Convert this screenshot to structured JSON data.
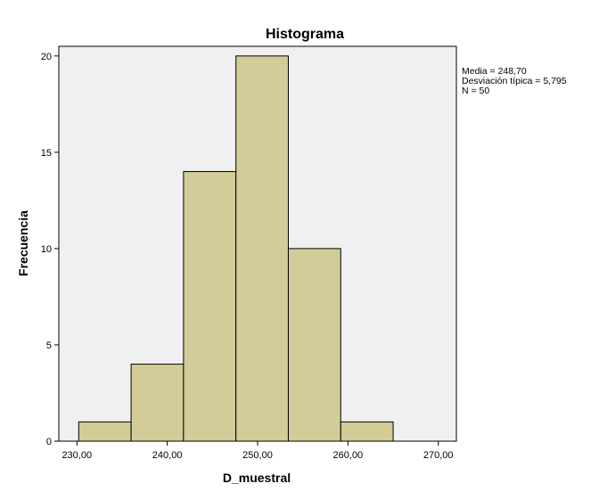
{
  "chart_data": {
    "type": "bar",
    "title": "Histograma",
    "xlabel": "D_muestral",
    "ylabel": "Frecuencia",
    "xlim": [
      228,
      272
    ],
    "ylim": [
      0,
      20.5
    ],
    "x_ticks": [
      230,
      240,
      250,
      260,
      270
    ],
    "x_tick_labels": [
      "230,00",
      "240,00",
      "250,00",
      "260,00",
      "270,00"
    ],
    "y_ticks": [
      0,
      5,
      10,
      15,
      20
    ],
    "y_tick_labels": [
      "0",
      "5",
      "10",
      "15",
      "20"
    ],
    "bins": [
      {
        "start": 230.2,
        "end": 236.0,
        "count": 1
      },
      {
        "start": 236.0,
        "end": 241.8,
        "count": 4
      },
      {
        "start": 241.8,
        "end": 247.6,
        "count": 14
      },
      {
        "start": 247.6,
        "end": 253.4,
        "count": 20
      },
      {
        "start": 253.4,
        "end": 259.2,
        "count": 10
      },
      {
        "start": 259.2,
        "end": 265.0,
        "count": 1
      }
    ],
    "bar_color": "#d3cc98",
    "bar_edge_color": "#000000",
    "plot_background": "#f0f0f0",
    "grid": false,
    "legend": "right",
    "stats": [
      "Media = 248,70",
      "Desviación típica = 5,795",
      "N = 50"
    ]
  }
}
